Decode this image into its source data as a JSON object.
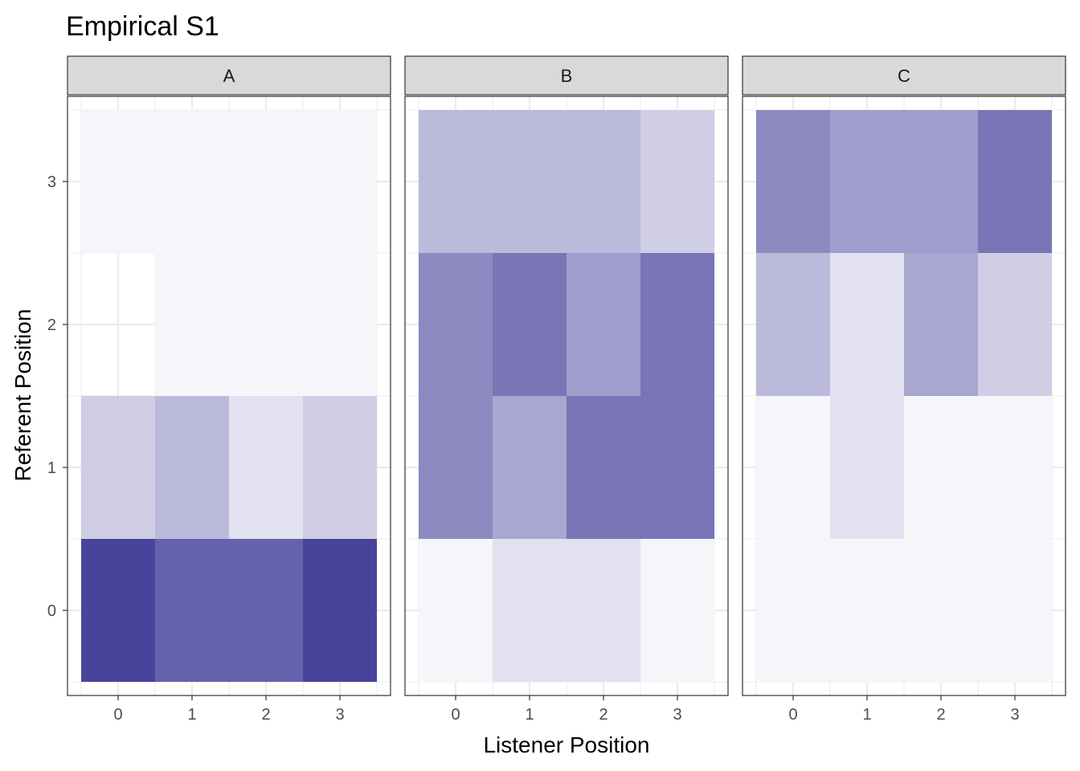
{
  "chart_data": {
    "type": "heatmap",
    "title": "Empirical S1",
    "xlabel": "Listener Position",
    "ylabel": "Referent Position",
    "x_ticks": [
      0,
      1,
      2,
      3
    ],
    "y_ticks": [
      0,
      1,
      2,
      3
    ],
    "xlim": [
      -0.5,
      3.5
    ],
    "ylim": [
      -0.5,
      3.5
    ],
    "grid": true,
    "legend": "none",
    "color_scale": {
      "low": "#ffffff",
      "high": "#3f3a96"
    },
    "facets": [
      {
        "label": "A",
        "cells": [
          {
            "x": 0,
            "y": 3,
            "value": 0.05
          },
          {
            "x": 1,
            "y": 3,
            "value": 0.05
          },
          {
            "x": 2,
            "y": 3,
            "value": 0.05
          },
          {
            "x": 3,
            "y": 3,
            "value": 0.05
          },
          {
            "x": 0,
            "y": 2,
            "value": 0.0
          },
          {
            "x": 1,
            "y": 2,
            "value": 0.05
          },
          {
            "x": 2,
            "y": 2,
            "value": 0.05
          },
          {
            "x": 3,
            "y": 2,
            "value": 0.05
          },
          {
            "x": 0,
            "y": 1,
            "value": 0.25
          },
          {
            "x": 1,
            "y": 1,
            "value": 0.35
          },
          {
            "x": 2,
            "y": 1,
            "value": 0.15
          },
          {
            "x": 3,
            "y": 1,
            "value": 0.25
          },
          {
            "x": 0,
            "y": 0,
            "value": 0.95
          },
          {
            "x": 1,
            "y": 0,
            "value": 0.8
          },
          {
            "x": 2,
            "y": 0,
            "value": 0.8
          },
          {
            "x": 3,
            "y": 0,
            "value": 0.95
          }
        ]
      },
      {
        "label": "B",
        "cells": [
          {
            "x": 0,
            "y": 3,
            "value": 0.35
          },
          {
            "x": 1,
            "y": 3,
            "value": 0.35
          },
          {
            "x": 2,
            "y": 3,
            "value": 0.35
          },
          {
            "x": 3,
            "y": 3,
            "value": 0.25
          },
          {
            "x": 0,
            "y": 2,
            "value": 0.6
          },
          {
            "x": 1,
            "y": 2,
            "value": 0.7
          },
          {
            "x": 2,
            "y": 2,
            "value": 0.5
          },
          {
            "x": 3,
            "y": 2,
            "value": 0.7
          },
          {
            "x": 0,
            "y": 1,
            "value": 0.6
          },
          {
            "x": 1,
            "y": 1,
            "value": 0.45
          },
          {
            "x": 2,
            "y": 1,
            "value": 0.7
          },
          {
            "x": 3,
            "y": 1,
            "value": 0.7
          },
          {
            "x": 0,
            "y": 0,
            "value": 0.05
          },
          {
            "x": 1,
            "y": 0,
            "value": 0.15
          },
          {
            "x": 2,
            "y": 0,
            "value": 0.15
          },
          {
            "x": 3,
            "y": 0,
            "value": 0.05
          }
        ]
      },
      {
        "label": "C",
        "cells": [
          {
            "x": 0,
            "y": 3,
            "value": 0.6
          },
          {
            "x": 1,
            "y": 3,
            "value": 0.5
          },
          {
            "x": 2,
            "y": 3,
            "value": 0.5
          },
          {
            "x": 3,
            "y": 3,
            "value": 0.7
          },
          {
            "x": 0,
            "y": 2,
            "value": 0.35
          },
          {
            "x": 1,
            "y": 2,
            "value": 0.15
          },
          {
            "x": 2,
            "y": 2,
            "value": 0.45
          },
          {
            "x": 3,
            "y": 2,
            "value": 0.25
          },
          {
            "x": 0,
            "y": 1,
            "value": 0.05
          },
          {
            "x": 1,
            "y": 1,
            "value": 0.15
          },
          {
            "x": 2,
            "y": 1,
            "value": 0.05
          },
          {
            "x": 3,
            "y": 1,
            "value": 0.05
          },
          {
            "x": 0,
            "y": 0,
            "value": 0.05
          },
          {
            "x": 1,
            "y": 0,
            "value": 0.05
          },
          {
            "x": 2,
            "y": 0,
            "value": 0.05
          },
          {
            "x": 3,
            "y": 0,
            "value": 0.05
          }
        ]
      }
    ]
  }
}
